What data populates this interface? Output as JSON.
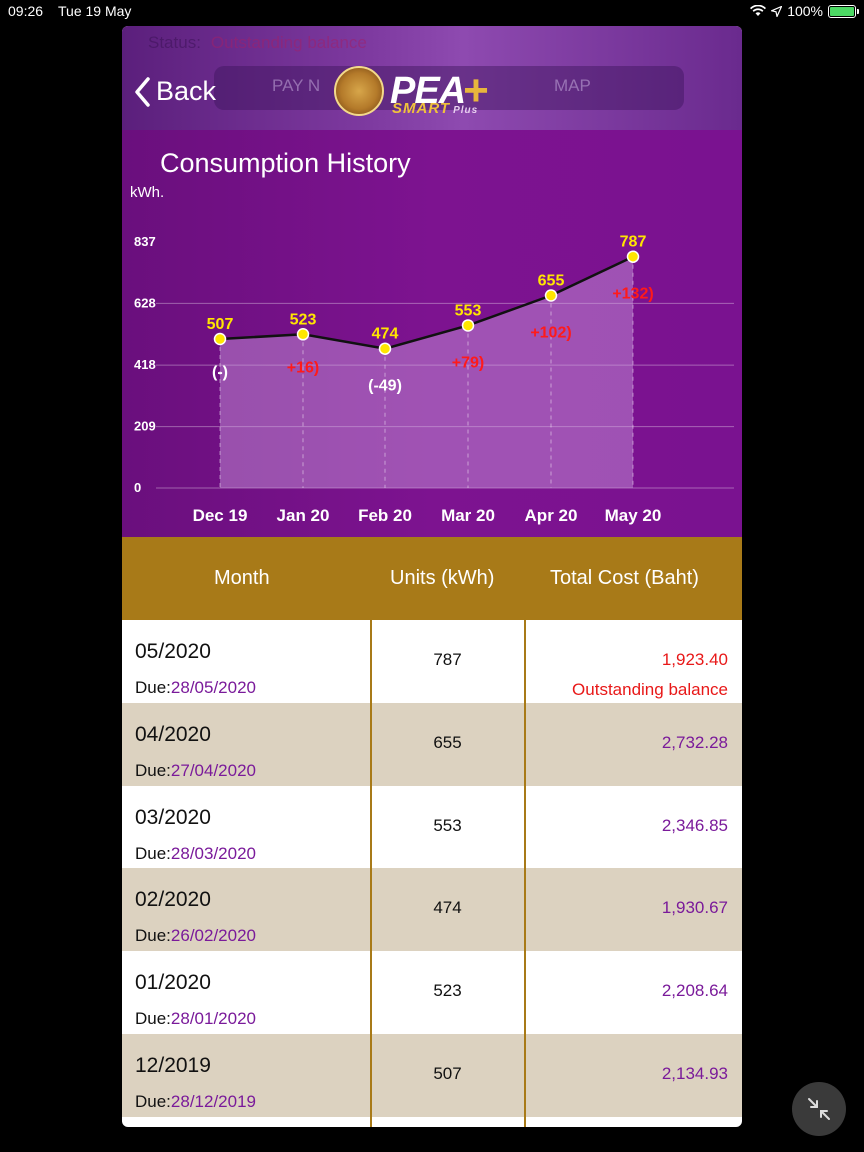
{
  "status_bar": {
    "time": "09:26",
    "date": "Tue 19 May",
    "battery": "100%"
  },
  "header": {
    "ghost_status_label": "Status:",
    "ghost_status_value": "Outstanding balance",
    "ghost_pay": "PAY N",
    "ghost_map": "MAP",
    "back_label": "Back",
    "brand": "PEA",
    "brand_sub": "SMART",
    "brand_sub_plus": "Plus"
  },
  "chart": {
    "title": "Consumption History",
    "unit": "kWh."
  },
  "chart_data": {
    "type": "area",
    "title": "Consumption History",
    "ylabel": "kWh.",
    "categories": [
      "Dec 19",
      "Jan 20",
      "Feb 20",
      "Mar 20",
      "Apr 20",
      "May 20"
    ],
    "values": [
      507,
      523,
      474,
      553,
      655,
      787
    ],
    "changes": [
      "(-)",
      "+16)",
      "(-49)",
      "+79)",
      "+102)",
      "+132)"
    ],
    "y_ticks": [
      "837",
      "628",
      "418",
      "209",
      "0"
    ],
    "ylim": [
      0,
      837
    ],
    "grid": true
  },
  "table": {
    "headers": {
      "month": "Month",
      "units": "Units (kWh)",
      "cost": "Total Cost (Baht)"
    },
    "due_label": "Due:",
    "rows": [
      {
        "month": "05/2020",
        "due": "28/05/2020",
        "units": "787",
        "cost": "1,923.40",
        "note": "Outstanding balance"
      },
      {
        "month": "04/2020",
        "due": "27/04/2020",
        "units": "655",
        "cost": "2,732.28",
        "note": ""
      },
      {
        "month": "03/2020",
        "due": "28/03/2020",
        "units": "553",
        "cost": "2,346.85",
        "note": ""
      },
      {
        "month": "02/2020",
        "due": "26/02/2020",
        "units": "474",
        "cost": "1,930.67",
        "note": ""
      },
      {
        "month": "01/2020",
        "due": "28/01/2020",
        "units": "523",
        "cost": "2,208.64",
        "note": ""
      },
      {
        "month": "12/2019",
        "due": "28/12/2019",
        "units": "507",
        "cost": "2,134.93",
        "note": ""
      }
    ]
  },
  "colors": {
    "purple": "#7d1390",
    "gold": "#a87a18",
    "row_alt": "#dcd2c0",
    "red": "#e81818",
    "value_yellow": "#ffe600"
  }
}
